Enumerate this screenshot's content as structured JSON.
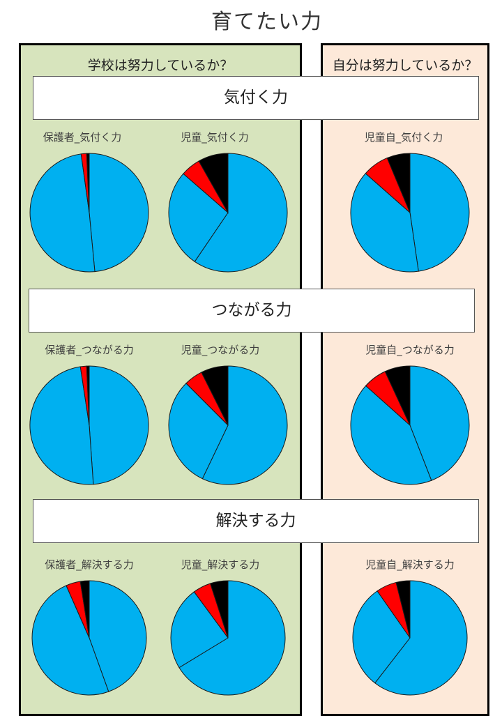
{
  "title": "育てたい力",
  "panels": {
    "left_header": "学校は努力しているか？",
    "right_header": "自分は努力しているか？"
  },
  "sections": [
    "気付く力",
    "つながる力",
    "解決する力"
  ],
  "colors": {
    "blue": "#00b0f0",
    "red": "#ff0000",
    "black": "#000000",
    "left_panel": "#d7e4bd",
    "right_panel": "#fde9d9"
  },
  "chart_data": [
    {
      "type": "pie",
      "title": "保護者_気付く力",
      "values": [
        48.5,
        49.3,
        1.5,
        0.7
      ],
      "colors": [
        "#00b0f0",
        "#00b0f0",
        "#ff0000",
        "#000000"
      ]
    },
    {
      "type": "pie",
      "title": "児童_気付く力",
      "values": [
        59.5,
        26.9,
        5.4,
        8.2
      ],
      "colors": [
        "#00b0f0",
        "#00b0f0",
        "#ff0000",
        "#000000"
      ]
    },
    {
      "type": "pie",
      "title": "児童自_気付く力",
      "values": [
        47.7,
        38.8,
        7.2,
        6.3
      ],
      "colors": [
        "#00b0f0",
        "#00b0f0",
        "#ff0000",
        "#000000"
      ]
    },
    {
      "type": "pie",
      "title": "保護者_つながる力",
      "values": [
        48.9,
        48.7,
        1.7,
        0.7
      ],
      "colors": [
        "#00b0f0",
        "#00b0f0",
        "#ff0000",
        "#000000"
      ]
    },
    {
      "type": "pie",
      "title": "児童_つながる力",
      "values": [
        57.1,
        30.4,
        5.1,
        7.4
      ],
      "colors": [
        "#00b0f0",
        "#00b0f0",
        "#ff0000",
        "#000000"
      ]
    },
    {
      "type": "pie",
      "title": "児童自_つながる力",
      "values": [
        44.1,
        42.5,
        6.5,
        6.9
      ],
      "colors": [
        "#00b0f0",
        "#00b0f0",
        "#ff0000",
        "#000000"
      ]
    },
    {
      "type": "pie",
      "title": "保護者_解決する力",
      "values": [
        44.5,
        48.9,
        4.1,
        2.5
      ],
      "colors": [
        "#00b0f0",
        "#00b0f0",
        "#ff0000",
        "#000000"
      ]
    },
    {
      "type": "pie",
      "title": "児童_解決する力",
      "values": [
        66.3,
        23.6,
        5.1,
        5.0
      ],
      "colors": [
        "#00b0f0",
        "#00b0f0",
        "#ff0000",
        "#000000"
      ]
    },
    {
      "type": "pie",
      "title": "児童自_解決する力",
      "values": [
        60.5,
        29.8,
        5.8,
        3.9
      ],
      "colors": [
        "#00b0f0",
        "#00b0f0",
        "#ff0000",
        "#000000"
      ]
    }
  ]
}
